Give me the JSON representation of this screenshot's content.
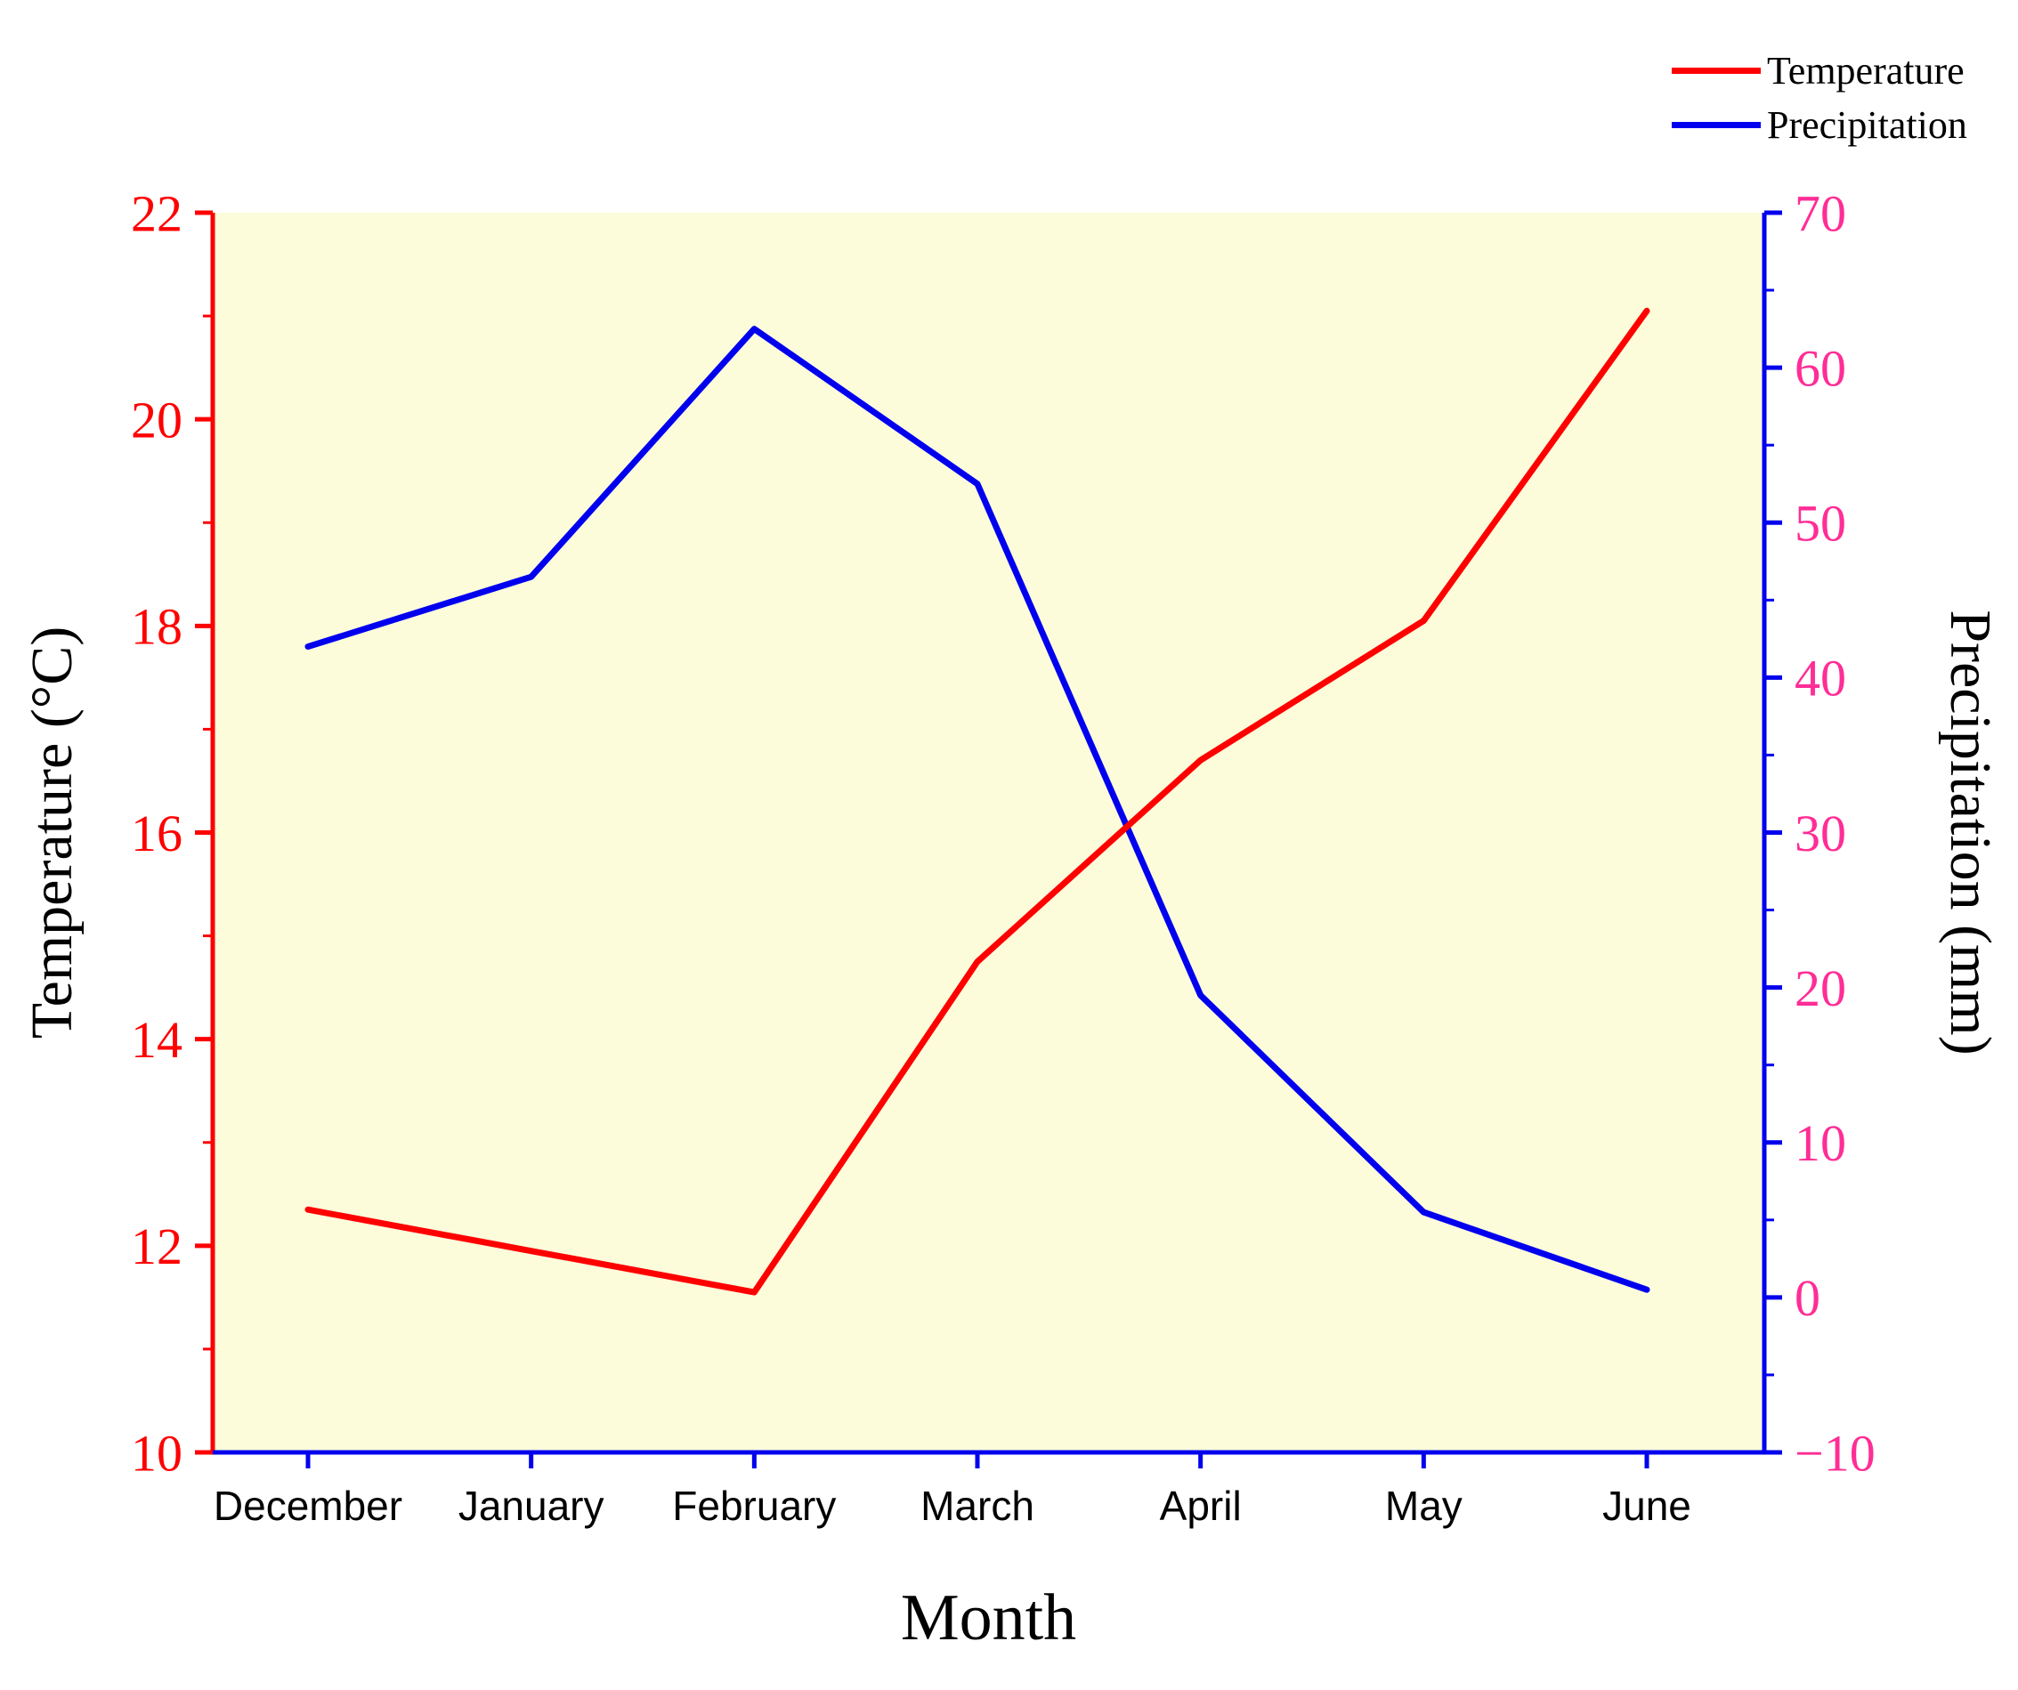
{
  "figure": {
    "background": "#FFFFFF"
  },
  "legend": {
    "position": "top-right",
    "entries": [
      {
        "label": "Temperature"
      },
      {
        "label": "Precipitation"
      }
    ]
  },
  "chart_data": {
    "type": "line",
    "title": "",
    "categories": [
      "December",
      "January",
      "February",
      "March",
      "April",
      "May",
      "June"
    ],
    "xlabel": "Month",
    "series": [
      {
        "name": "Temperature",
        "axis": "left",
        "color": "#FF0000",
        "values": [
          12.35,
          11.95,
          11.55,
          14.75,
          16.7,
          18.05,
          21.05
        ]
      },
      {
        "name": "Precipitation",
        "axis": "right",
        "color": "#0000EE",
        "values": [
          42,
          46.5,
          62.5,
          52.5,
          19.5,
          5.5,
          0.5
        ]
      }
    ],
    "axes": {
      "left": {
        "label": "Temperature (°C)",
        "range": [
          10,
          22
        ],
        "ticks": [
          10,
          12,
          14,
          16,
          18,
          20,
          22
        ],
        "minor_step": 1,
        "spine_color": "#FF0000",
        "tick_label_color": "#FF0000"
      },
      "right": {
        "label": "Precipitation (mm)",
        "range": [
          -10,
          70
        ],
        "ticks": [
          -10,
          0,
          10,
          20,
          30,
          40,
          50,
          60,
          70
        ],
        "minor_step": 5,
        "spine_color": "#0000EE",
        "tick_label_color": "#FF2D96"
      },
      "bottom": {
        "spine_color": "#0000EE",
        "tick_label_color": "#000000"
      }
    },
    "plot_background": "#FCFCDB",
    "grid": false,
    "legend_position": "top-right"
  }
}
